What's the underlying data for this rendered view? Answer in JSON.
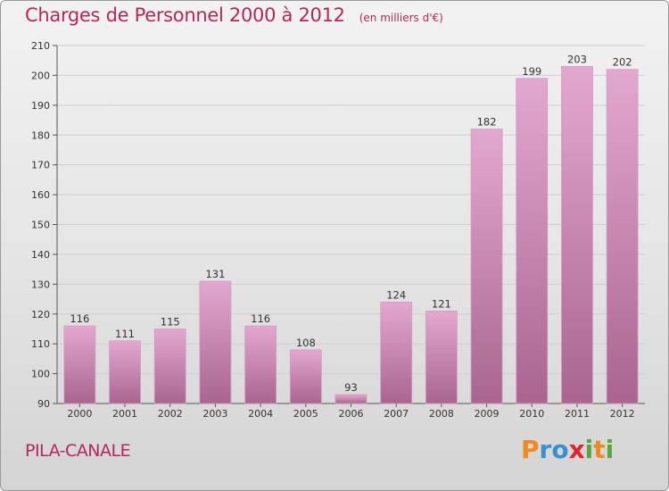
{
  "header": {
    "title": "Charges de Personnel 2000 à 2012",
    "subtitle": "(en milliers d'€)"
  },
  "footer": {
    "commune": "PILA-CANALE",
    "brand": "Proxiti",
    "brand_letters": [
      {
        "ch": "P",
        "color": "#f08a1c"
      },
      {
        "ch": "r",
        "color": "#3a8fd0"
      },
      {
        "ch": "o",
        "color": "#3a8fd0"
      },
      {
        "ch": "x",
        "color": "#e0262a"
      },
      {
        "ch": "i",
        "color": "#5aa53c"
      },
      {
        "ch": "t",
        "color": "#f08a1c"
      },
      {
        "ch": "i",
        "color": "#5aa53c"
      }
    ]
  },
  "colors": {
    "accent": "#b5265e",
    "bar_light": "#e3a8cf",
    "bar_dark": "#a9658f"
  },
  "chart_data": {
    "type": "bar",
    "title": "Charges de Personnel 2000 à 2012",
    "subtitle": "(en milliers d'€)",
    "categories": [
      "2000",
      "2001",
      "2002",
      "2003",
      "2004",
      "2005",
      "2006",
      "2007",
      "2008",
      "2009",
      "2010",
      "2011",
      "2012"
    ],
    "values": [
      116,
      111,
      115,
      131,
      116,
      108,
      93,
      124,
      121,
      182,
      199,
      203,
      202
    ],
    "ylim": [
      90,
      210
    ],
    "yticks": [
      90,
      100,
      110,
      120,
      130,
      140,
      150,
      160,
      170,
      180,
      190,
      200,
      210
    ],
    "grid": true,
    "legend": "none"
  }
}
